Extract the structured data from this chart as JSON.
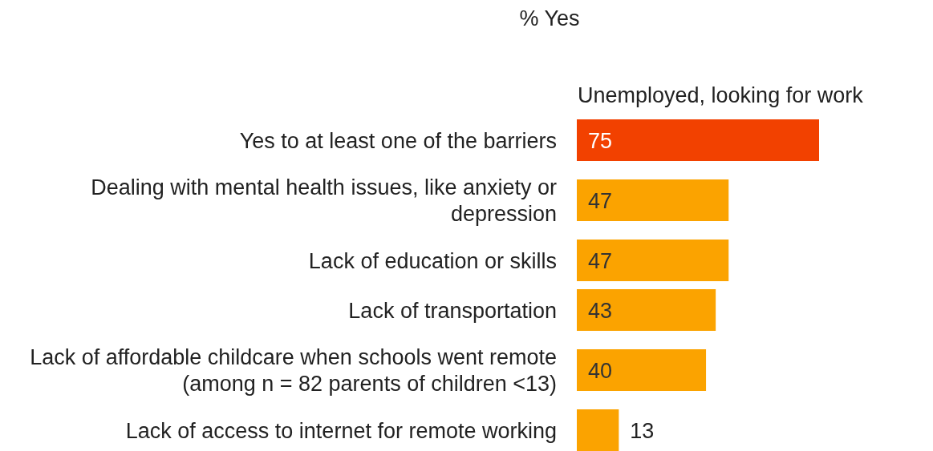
{
  "chart_data": {
    "type": "bar",
    "orientation": "horizontal",
    "title": "% Yes",
    "subtitle": "Unemployed, looking for work",
    "categories": [
      "Yes to at least one of the barriers",
      "Dealing with mental health issues, like anxiety or depression",
      "Lack of education or skills",
      "Lack of transportation",
      "Lack of affordable childcare when schools went remote (among n = 82 parents of children <13)",
      "Lack of access to internet for remote working"
    ],
    "values": [
      75,
      47,
      47,
      43,
      40,
      13
    ],
    "colors": [
      "#f24100",
      "#fba300",
      "#fba300",
      "#fba300",
      "#fba300",
      "#fba300"
    ],
    "data_labels": true
  }
}
